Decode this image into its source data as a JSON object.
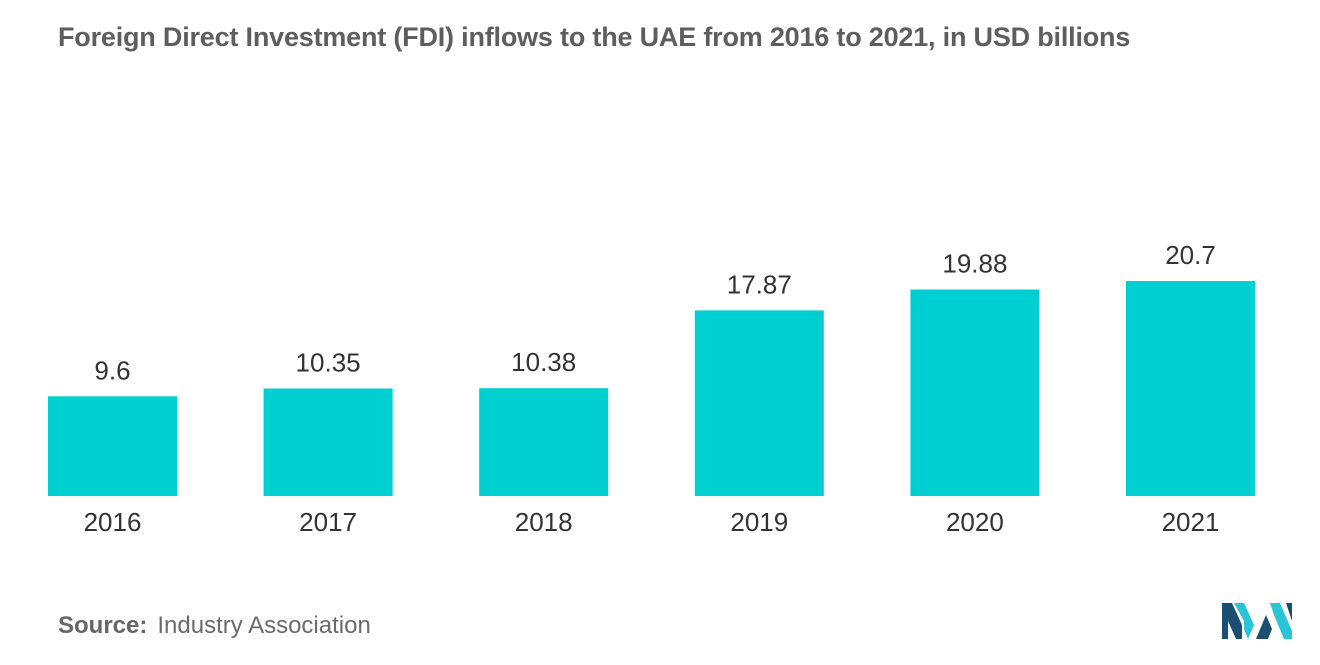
{
  "chart_data": {
    "type": "bar",
    "title": "Foreign Direct Investment (FDI) inflows to the UAE from 2016 to 2021, in USD billions",
    "categories": [
      "2016",
      "2017",
      "2018",
      "2019",
      "2020",
      "2021"
    ],
    "values": [
      9.6,
      10.35,
      10.38,
      17.87,
      19.88,
      20.7
    ],
    "value_labels": [
      "9.6",
      "10.35",
      "10.38",
      "17.87",
      "19.88",
      "20.7"
    ],
    "xlabel": "",
    "ylabel": "",
    "ylim": [
      0,
      20.7
    ],
    "grid": false,
    "legend": "none",
    "bar_color": "#00cfd1"
  },
  "source": {
    "label": "Source:",
    "text": "Industry Association"
  },
  "colors": {
    "logo_dark": "#1b4f72",
    "logo_light": "#29c4d6"
  }
}
